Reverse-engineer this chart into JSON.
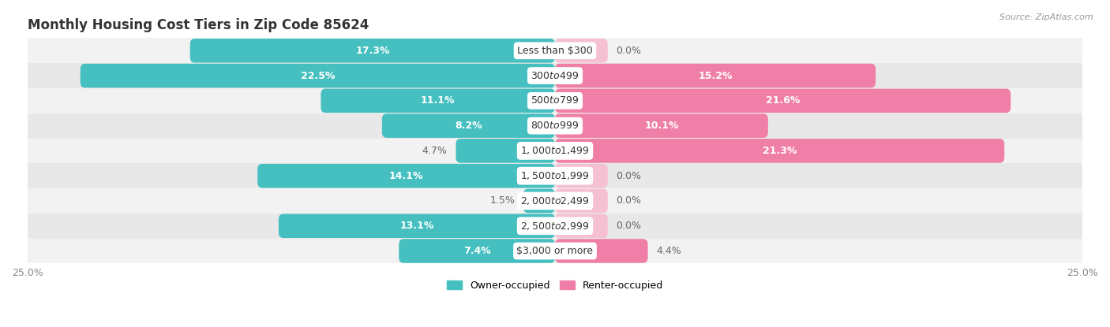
{
  "title": "Monthly Housing Cost Tiers in Zip Code 85624",
  "source": "Source: ZipAtlas.com",
  "categories": [
    "Less than $300",
    "$300 to $499",
    "$500 to $799",
    "$800 to $999",
    "$1,000 to $1,499",
    "$1,500 to $1,999",
    "$2,000 to $2,499",
    "$2,500 to $2,999",
    "$3,000 or more"
  ],
  "owner_values": [
    17.3,
    22.5,
    11.1,
    8.2,
    4.7,
    14.1,
    1.5,
    13.1,
    7.4
  ],
  "renter_values": [
    0.0,
    15.2,
    21.6,
    10.1,
    21.3,
    0.0,
    0.0,
    0.0,
    4.4
  ],
  "owner_color": "#45BFC0",
  "renter_color": "#F07FA8",
  "renter_zero_color": "#F5C0D2",
  "bg_colors": [
    "#F2F2F2",
    "#E8E8E8"
  ],
  "max_value": 25.0,
  "bar_height": 0.52,
  "title_fontsize": 12,
  "source_fontsize": 8,
  "axis_label_fontsize": 9,
  "bar_label_fontsize": 9,
  "category_fontsize": 9,
  "white_label_threshold": 6.0,
  "zero_stub_size": 2.5
}
